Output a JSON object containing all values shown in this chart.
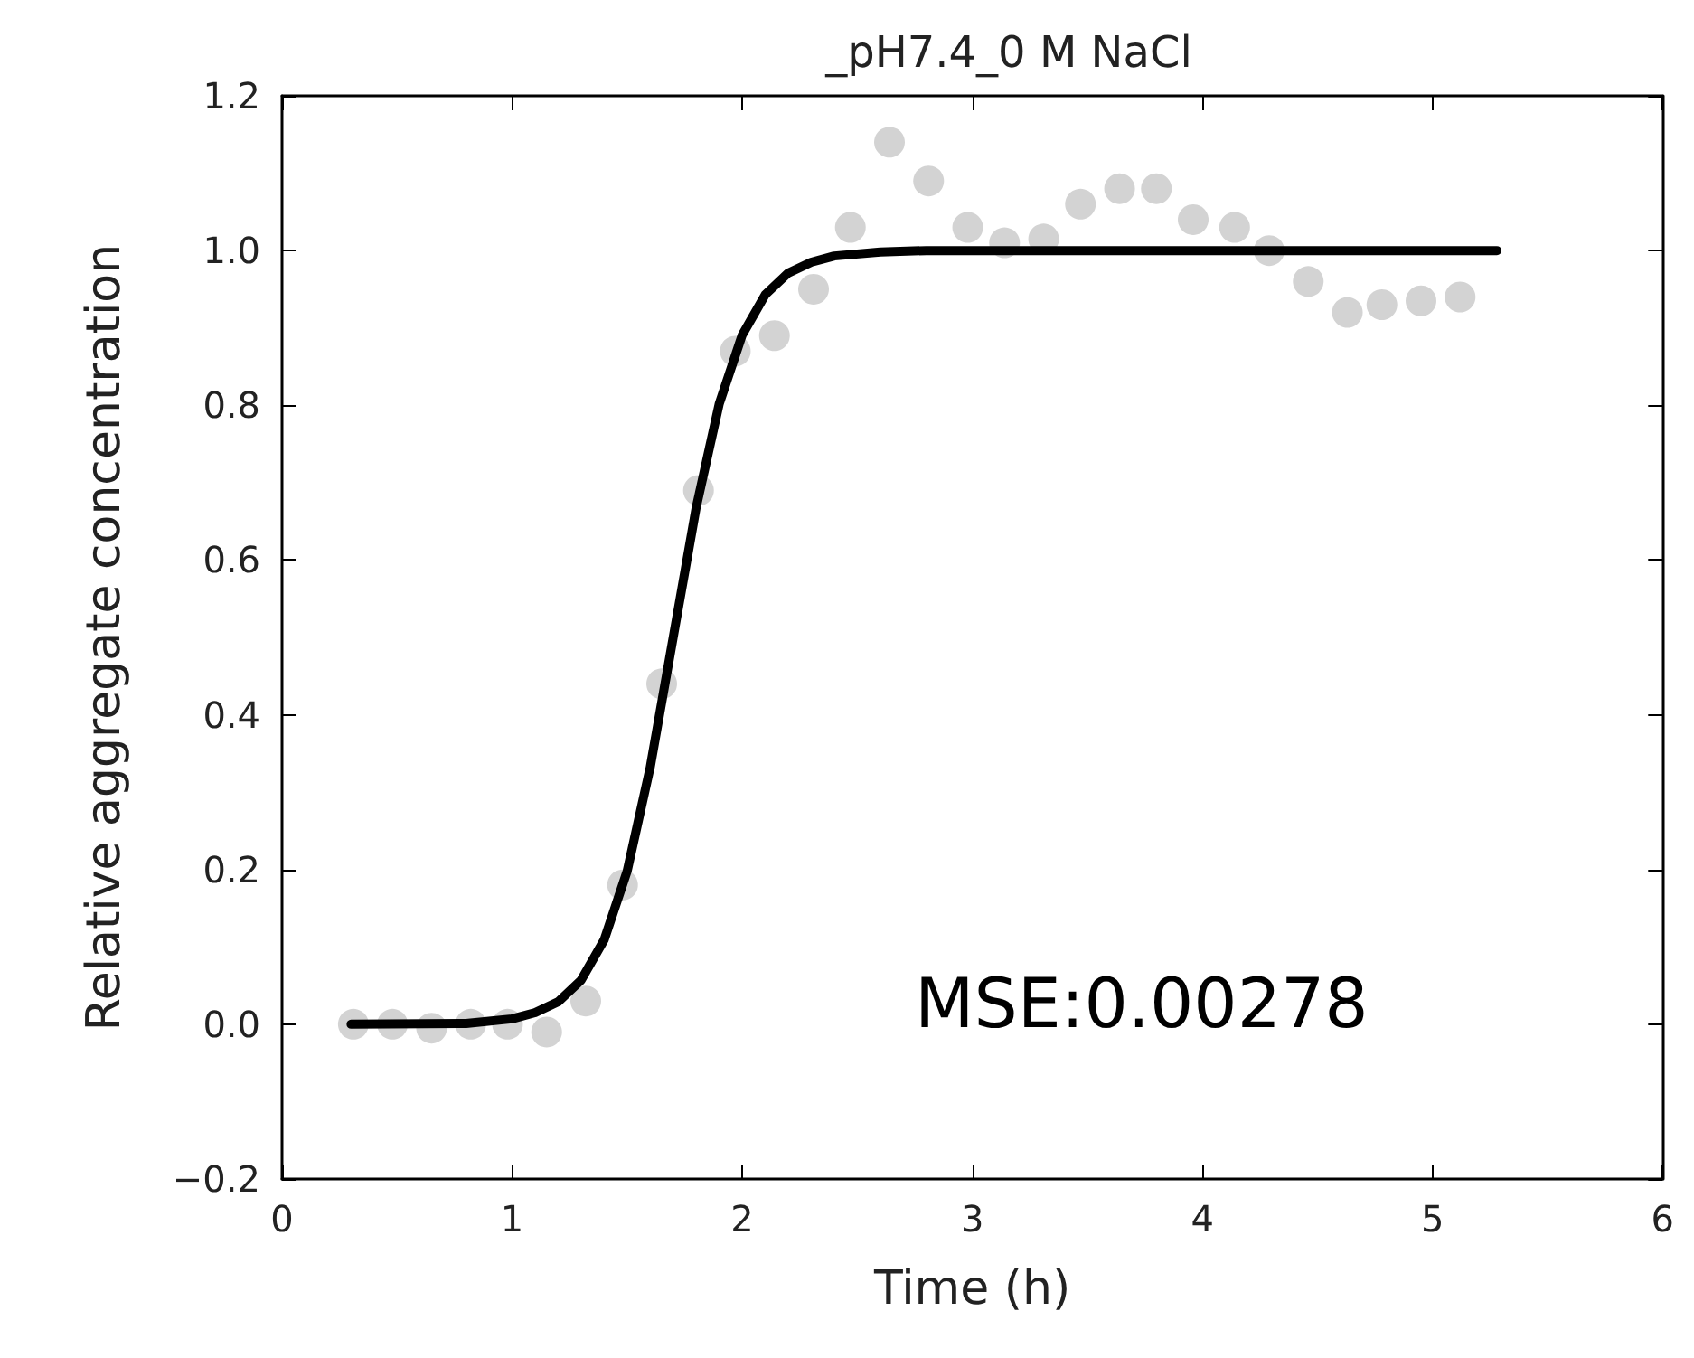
{
  "chart_data": {
    "type": "scatter",
    "title": "_pH7.4_0 M NaCl",
    "xlabel": "Time (h)",
    "ylabel": "Relative aggregate concentration",
    "annotations": [
      "MSE:0.00278"
    ],
    "xlim": [
      0,
      6
    ],
    "xticks": [
      0,
      1,
      2,
      3,
      4,
      5,
      6
    ],
    "ylim": [
      -0.2,
      1.2
    ],
    "yticks": [
      {
        "value": -0.2,
        "label": "−0.2"
      },
      {
        "value": 0,
        "label": "0.0"
      },
      0.2,
      0.4,
      0.6,
      0.8,
      {
        "value": 1,
        "label": "1.0"
      },
      1.2
    ],
    "grid": false,
    "series": [
      {
        "color": "#c8c8c8",
        "marker": "circle",
        "x": [
          0.31,
          0.48,
          0.65,
          0.82,
          0.98,
          1.15,
          1.32,
          1.48,
          1.65,
          1.81,
          1.97,
          2.14,
          2.31,
          2.47,
          2.64,
          2.81,
          2.98,
          3.14,
          3.31,
          3.47,
          3.64,
          3.8,
          3.96,
          4.14,
          4.29,
          4.46,
          4.63,
          4.78,
          4.95,
          5.12
        ],
        "values": [
          0,
          0,
          -0.005,
          0,
          0,
          -0.01,
          0.03,
          0.18,
          0.44,
          0.69,
          0.87,
          0.89,
          0.95,
          1.03,
          1.14,
          1.09,
          1.03,
          1.01,
          1.015,
          1.06,
          1.08,
          1.08,
          1.04,
          1.03,
          1.0,
          0.96,
          0.92,
          0.93,
          0.935,
          0.94
        ]
      },
      {
        "type": "line",
        "color": "#000000",
        "marker": "none",
        "line_style": "solid",
        "x": [
          0.3,
          0.8,
          1.0,
          1.1,
          1.2,
          1.3,
          1.4,
          1.5,
          1.6,
          1.7,
          1.8,
          1.9,
          2.0,
          2.1,
          2.2,
          2.3,
          2.4,
          2.6,
          2.8,
          3.5,
          5.28
        ],
        "values": [
          0,
          0.001,
          0.007,
          0.015,
          0.029,
          0.057,
          0.109,
          0.198,
          0.332,
          0.5,
          0.668,
          0.802,
          0.891,
          0.943,
          0.971,
          0.985,
          0.993,
          0.998,
          1.0,
          1.0,
          1.0
        ]
      }
    ]
  }
}
